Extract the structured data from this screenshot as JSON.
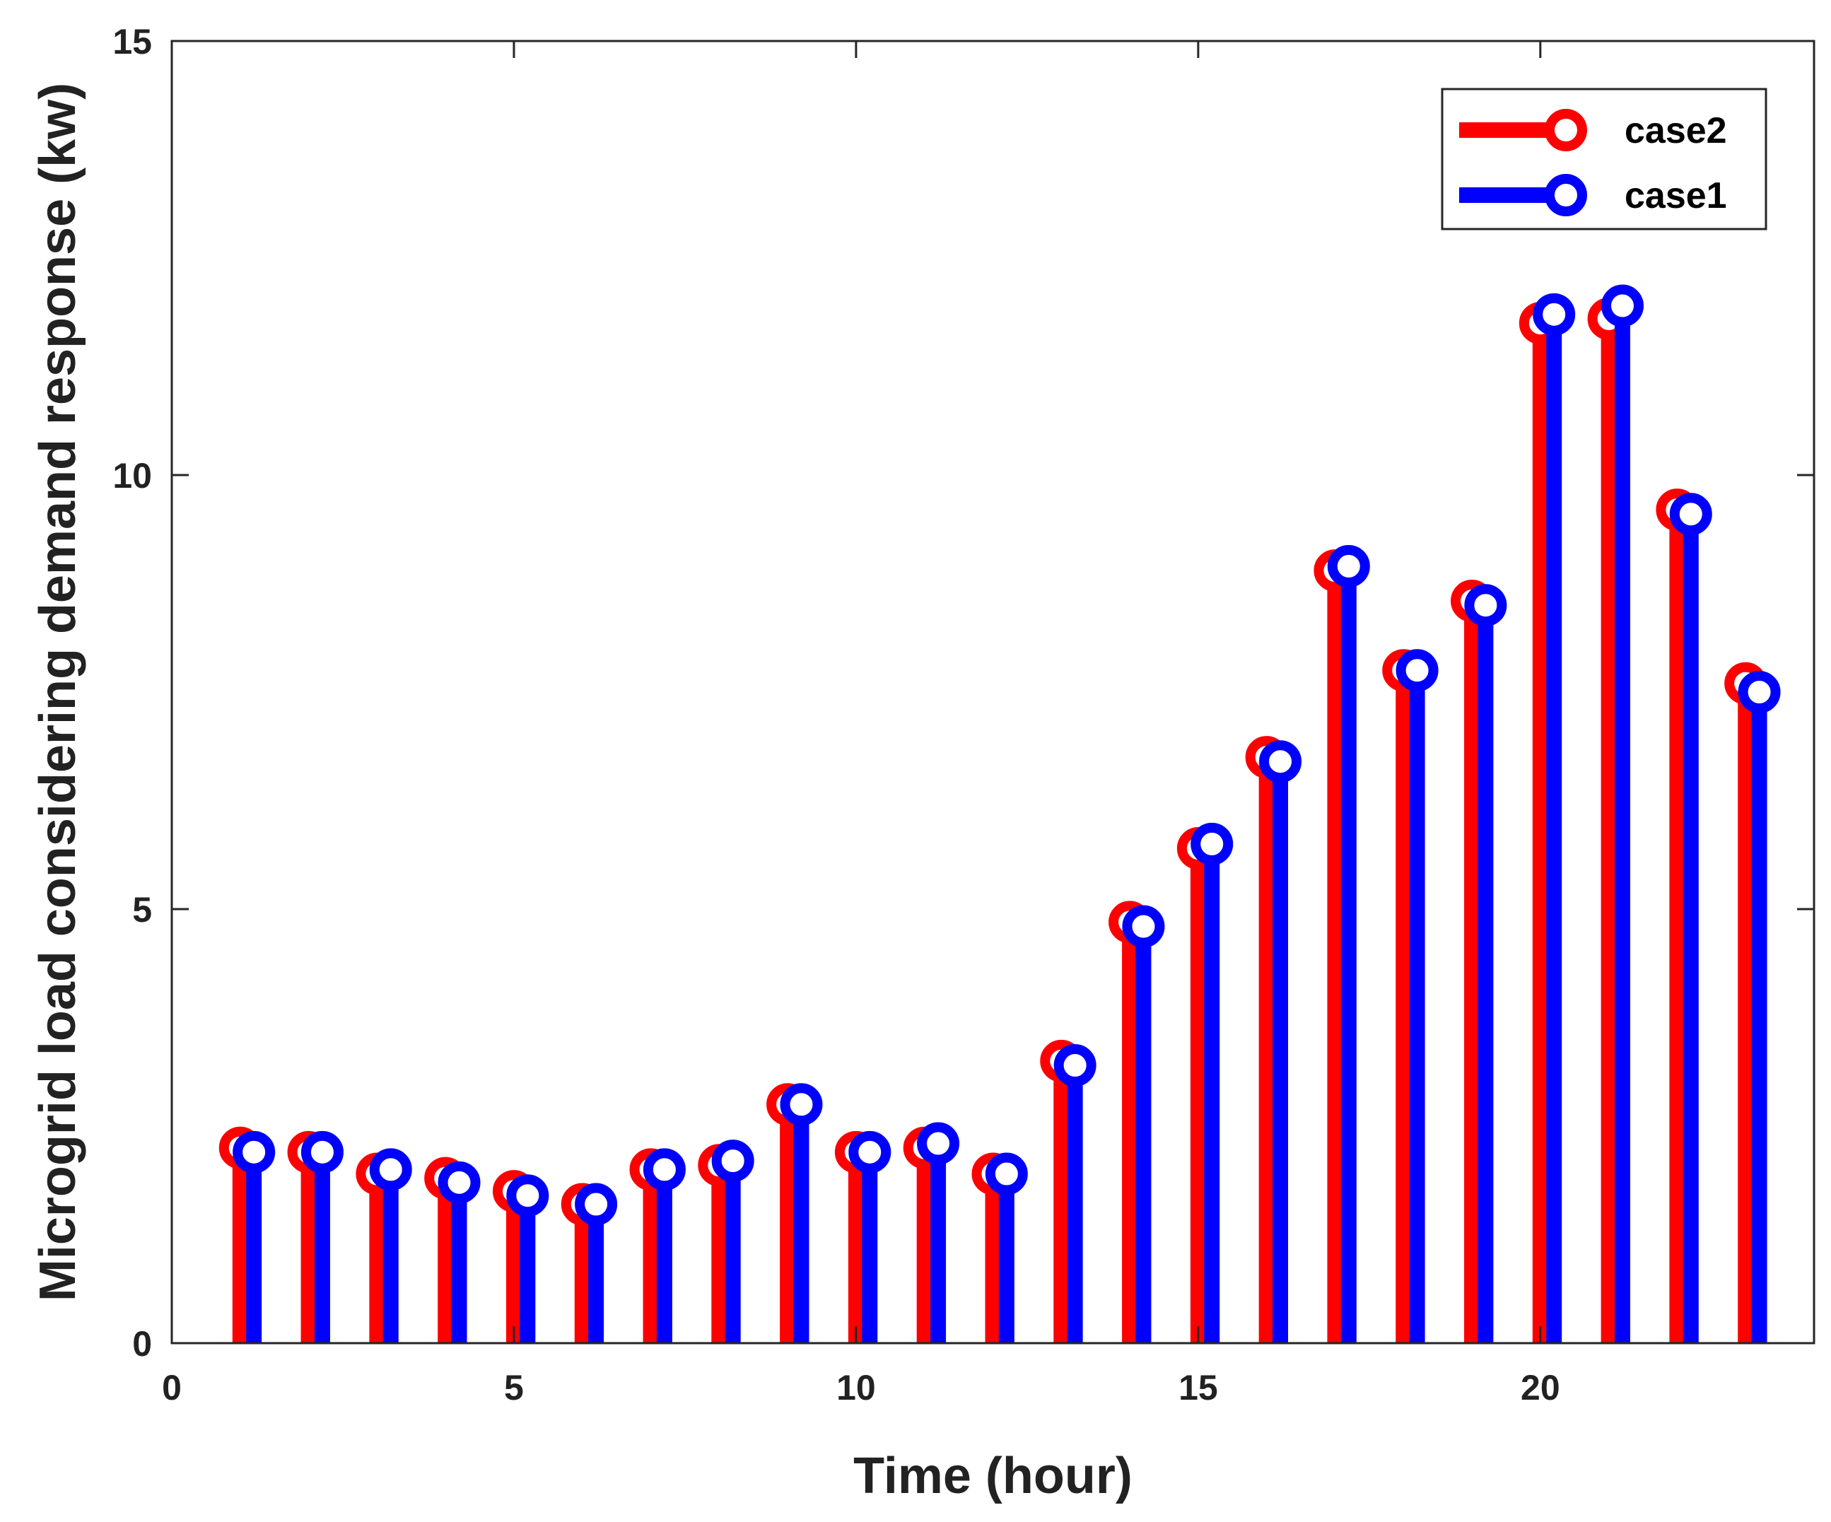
{
  "chart_data": {
    "type": "stem",
    "title": "",
    "xlabel": "Time (hour)",
    "ylabel": "Microgrid load considering demand response (kw)",
    "xlim": [
      0,
      24
    ],
    "ylim": [
      0,
      15
    ],
    "xticks": [
      0,
      5,
      10,
      15,
      20
    ],
    "yticks": [
      0,
      5,
      10,
      15
    ],
    "grid": false,
    "legend_position": "top-right",
    "series": [
      {
        "name": "case2",
        "color": "#ff0000",
        "x": [
          1,
          2,
          3,
          4,
          5,
          6,
          7,
          8,
          9,
          10,
          11,
          12,
          13,
          14,
          15,
          16,
          17,
          18,
          19,
          20,
          21,
          22,
          23
        ],
        "values": [
          2.25,
          2.2,
          1.95,
          1.9,
          1.75,
          1.6,
          2.0,
          2.05,
          2.75,
          2.2,
          2.25,
          1.95,
          3.25,
          4.85,
          5.7,
          6.75,
          8.9,
          7.75,
          8.55,
          11.75,
          11.8,
          9.6,
          7.6
        ]
      },
      {
        "name": "case1",
        "color": "#0000ff",
        "x": [
          1.2,
          2.2,
          3.2,
          4.2,
          5.2,
          6.2,
          7.2,
          8.2,
          9.2,
          10.2,
          11.2,
          12.2,
          13.2,
          14.2,
          15.2,
          16.2,
          17.2,
          18.2,
          19.2,
          20.2,
          21.2,
          22.2,
          23.2
        ],
        "values": [
          2.2,
          2.2,
          2.0,
          1.85,
          1.7,
          1.6,
          2.0,
          2.1,
          2.75,
          2.2,
          2.3,
          1.95,
          3.2,
          4.8,
          5.75,
          6.7,
          8.95,
          7.75,
          8.5,
          11.85,
          11.95,
          9.55,
          7.5
        ]
      }
    ]
  }
}
